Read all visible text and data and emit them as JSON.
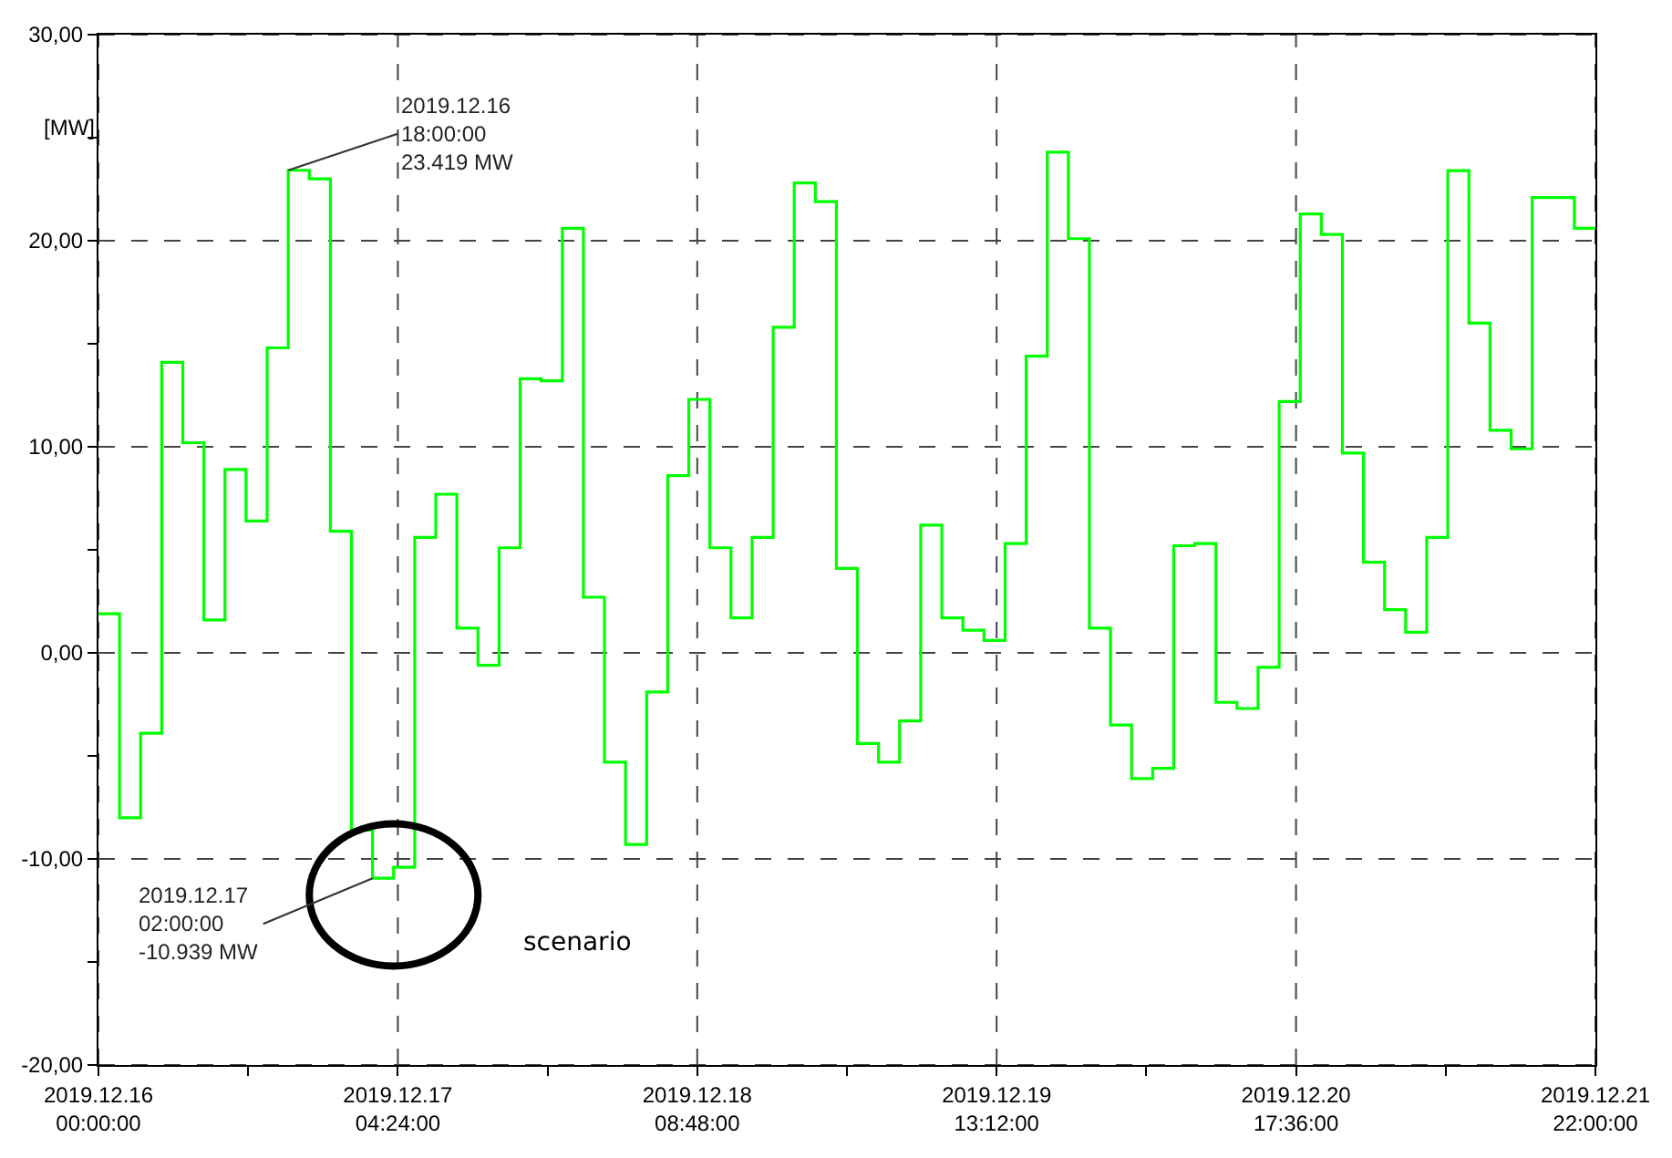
{
  "chart_data": {
    "type": "step",
    "ylabel": "[MW]",
    "x": [
      "2019-12-16T00:00",
      "2019-12-16T02:00",
      "2019-12-16T04:00",
      "2019-12-16T06:00",
      "2019-12-16T08:00",
      "2019-12-16T10:00",
      "2019-12-16T12:00",
      "2019-12-16T14:00",
      "2019-12-16T16:00",
      "2019-12-16T18:00",
      "2019-12-16T20:00",
      "2019-12-16T22:00",
      "2019-12-17T00:00",
      "2019-12-17T02:00",
      "2019-12-17T04:00",
      "2019-12-17T06:00",
      "2019-12-17T08:00",
      "2019-12-17T10:00",
      "2019-12-17T12:00",
      "2019-12-17T14:00",
      "2019-12-17T16:00",
      "2019-12-17T18:00",
      "2019-12-17T20:00",
      "2019-12-17T22:00",
      "2019-12-18T00:00",
      "2019-12-18T02:00",
      "2019-12-18T04:00",
      "2019-12-18T06:00",
      "2019-12-18T08:00",
      "2019-12-18T10:00",
      "2019-12-18T12:00",
      "2019-12-18T14:00",
      "2019-12-18T16:00",
      "2019-12-18T18:00",
      "2019-12-18T20:00",
      "2019-12-18T22:00",
      "2019-12-19T00:00",
      "2019-12-19T02:00",
      "2019-12-19T04:00",
      "2019-12-19T06:00",
      "2019-12-19T08:00",
      "2019-12-19T10:00",
      "2019-12-19T12:00",
      "2019-12-19T14:00",
      "2019-12-19T16:00",
      "2019-12-19T18:00",
      "2019-12-19T20:00",
      "2019-12-19T22:00",
      "2019-12-20T00:00",
      "2019-12-20T02:00",
      "2019-12-20T04:00",
      "2019-12-20T06:00",
      "2019-12-20T08:00",
      "2019-12-20T10:00",
      "2019-12-20T12:00",
      "2019-12-20T14:00",
      "2019-12-20T16:00",
      "2019-12-20T18:00",
      "2019-12-20T20:00",
      "2019-12-20T22:00",
      "2019-12-21T00:00",
      "2019-12-21T02:00",
      "2019-12-21T04:00",
      "2019-12-21T06:00",
      "2019-12-21T08:00",
      "2019-12-21T10:00",
      "2019-12-21T12:00",
      "2019-12-21T14:00",
      "2019-12-21T16:00",
      "2019-12-21T18:00",
      "2019-12-21T20:00",
      "2019-12-21T22:00"
    ],
    "series": [
      {
        "color": "#00ff00",
        "values": [
          1.9,
          -8.0,
          -3.9,
          14.1,
          10.2,
          1.6,
          8.9,
          6.4,
          14.8,
          23.419,
          23.0,
          5.9,
          -8.6,
          -10.939,
          -10.4,
          5.6,
          7.7,
          1.2,
          -0.6,
          5.1,
          13.3,
          13.2,
          20.6,
          2.7,
          -5.3,
          -9.3,
          -1.9,
          8.6,
          12.3,
          5.1,
          1.7,
          5.6,
          15.8,
          22.8,
          21.9,
          4.1,
          -4.4,
          -5.3,
          -3.3,
          6.2,
          1.7,
          1.1,
          0.6,
          5.3,
          14.4,
          24.3,
          20.1,
          1.2,
          -3.5,
          -6.1,
          -5.6,
          5.2,
          5.3,
          -2.4,
          -2.7,
          -0.7,
          12.2,
          21.3,
          20.3,
          9.7,
          4.4,
          2.1,
          1.0,
          5.6,
          23.4,
          16.0,
          10.8,
          9.9,
          22.1,
          22.1,
          20.6,
          20.6
        ]
      }
    ],
    "xlim": [
      "2019-12-16T00:00",
      "2019-12-21T22:00"
    ],
    "xticks": [
      {
        "value": "2019-12-16T00:00",
        "label": "2019.12.16\n00:00:00"
      },
      {
        "value": "2019-12-16T14:12",
        "label": null
      },
      {
        "value": "2019-12-17T04:24",
        "label": "2019.12.17\n04:24:00"
      },
      {
        "value": "2019-12-17T18:36",
        "label": null
      },
      {
        "value": "2019-12-18T08:48",
        "label": "2019.12.18\n08:48:00"
      },
      {
        "value": "2019-12-18T23:00",
        "label": null
      },
      {
        "value": "2019-12-19T13:12",
        "label": "2019.12.19\n13:12:00"
      },
      {
        "value": "2019-12-20T03:24",
        "label": null
      },
      {
        "value": "2019-12-20T17:36",
        "label": "2019.12.20\n17:36:00"
      },
      {
        "value": "2019-12-21T07:48",
        "label": null
      },
      {
        "value": "2019-12-21T22:00",
        "label": "2019.12.21\n22:00:00"
      }
    ],
    "ylim": [
      -20,
      30
    ],
    "yticks": [
      {
        "value": -20,
        "label": "-20,00"
      },
      {
        "value": -15,
        "label": null
      },
      {
        "value": -10,
        "label": "-10,00"
      },
      {
        "value": -5,
        "label": null
      },
      {
        "value": 0,
        "label": "0,00"
      },
      {
        "value": 5,
        "label": null
      },
      {
        "value": 10,
        "label": "10,00"
      },
      {
        "value": 15,
        "label": null
      },
      {
        "value": 20,
        "label": "20,00"
      },
      {
        "value": 25,
        "label": null
      },
      {
        "value": 30,
        "label": "30,00"
      }
    ],
    "grid": true,
    "marker": "none",
    "line_style": "solid",
    "annotations": [
      {
        "text": "2019.12.16\n18:00:00\n23.419 MW",
        "x": "2019-12-16T18:00",
        "y": 23.419
      },
      {
        "text": "2019.12.17\n02:00:00\n-10.939 MW",
        "x": "2019-12-17T02:00",
        "y": -10.939
      },
      "scenario"
    ]
  }
}
